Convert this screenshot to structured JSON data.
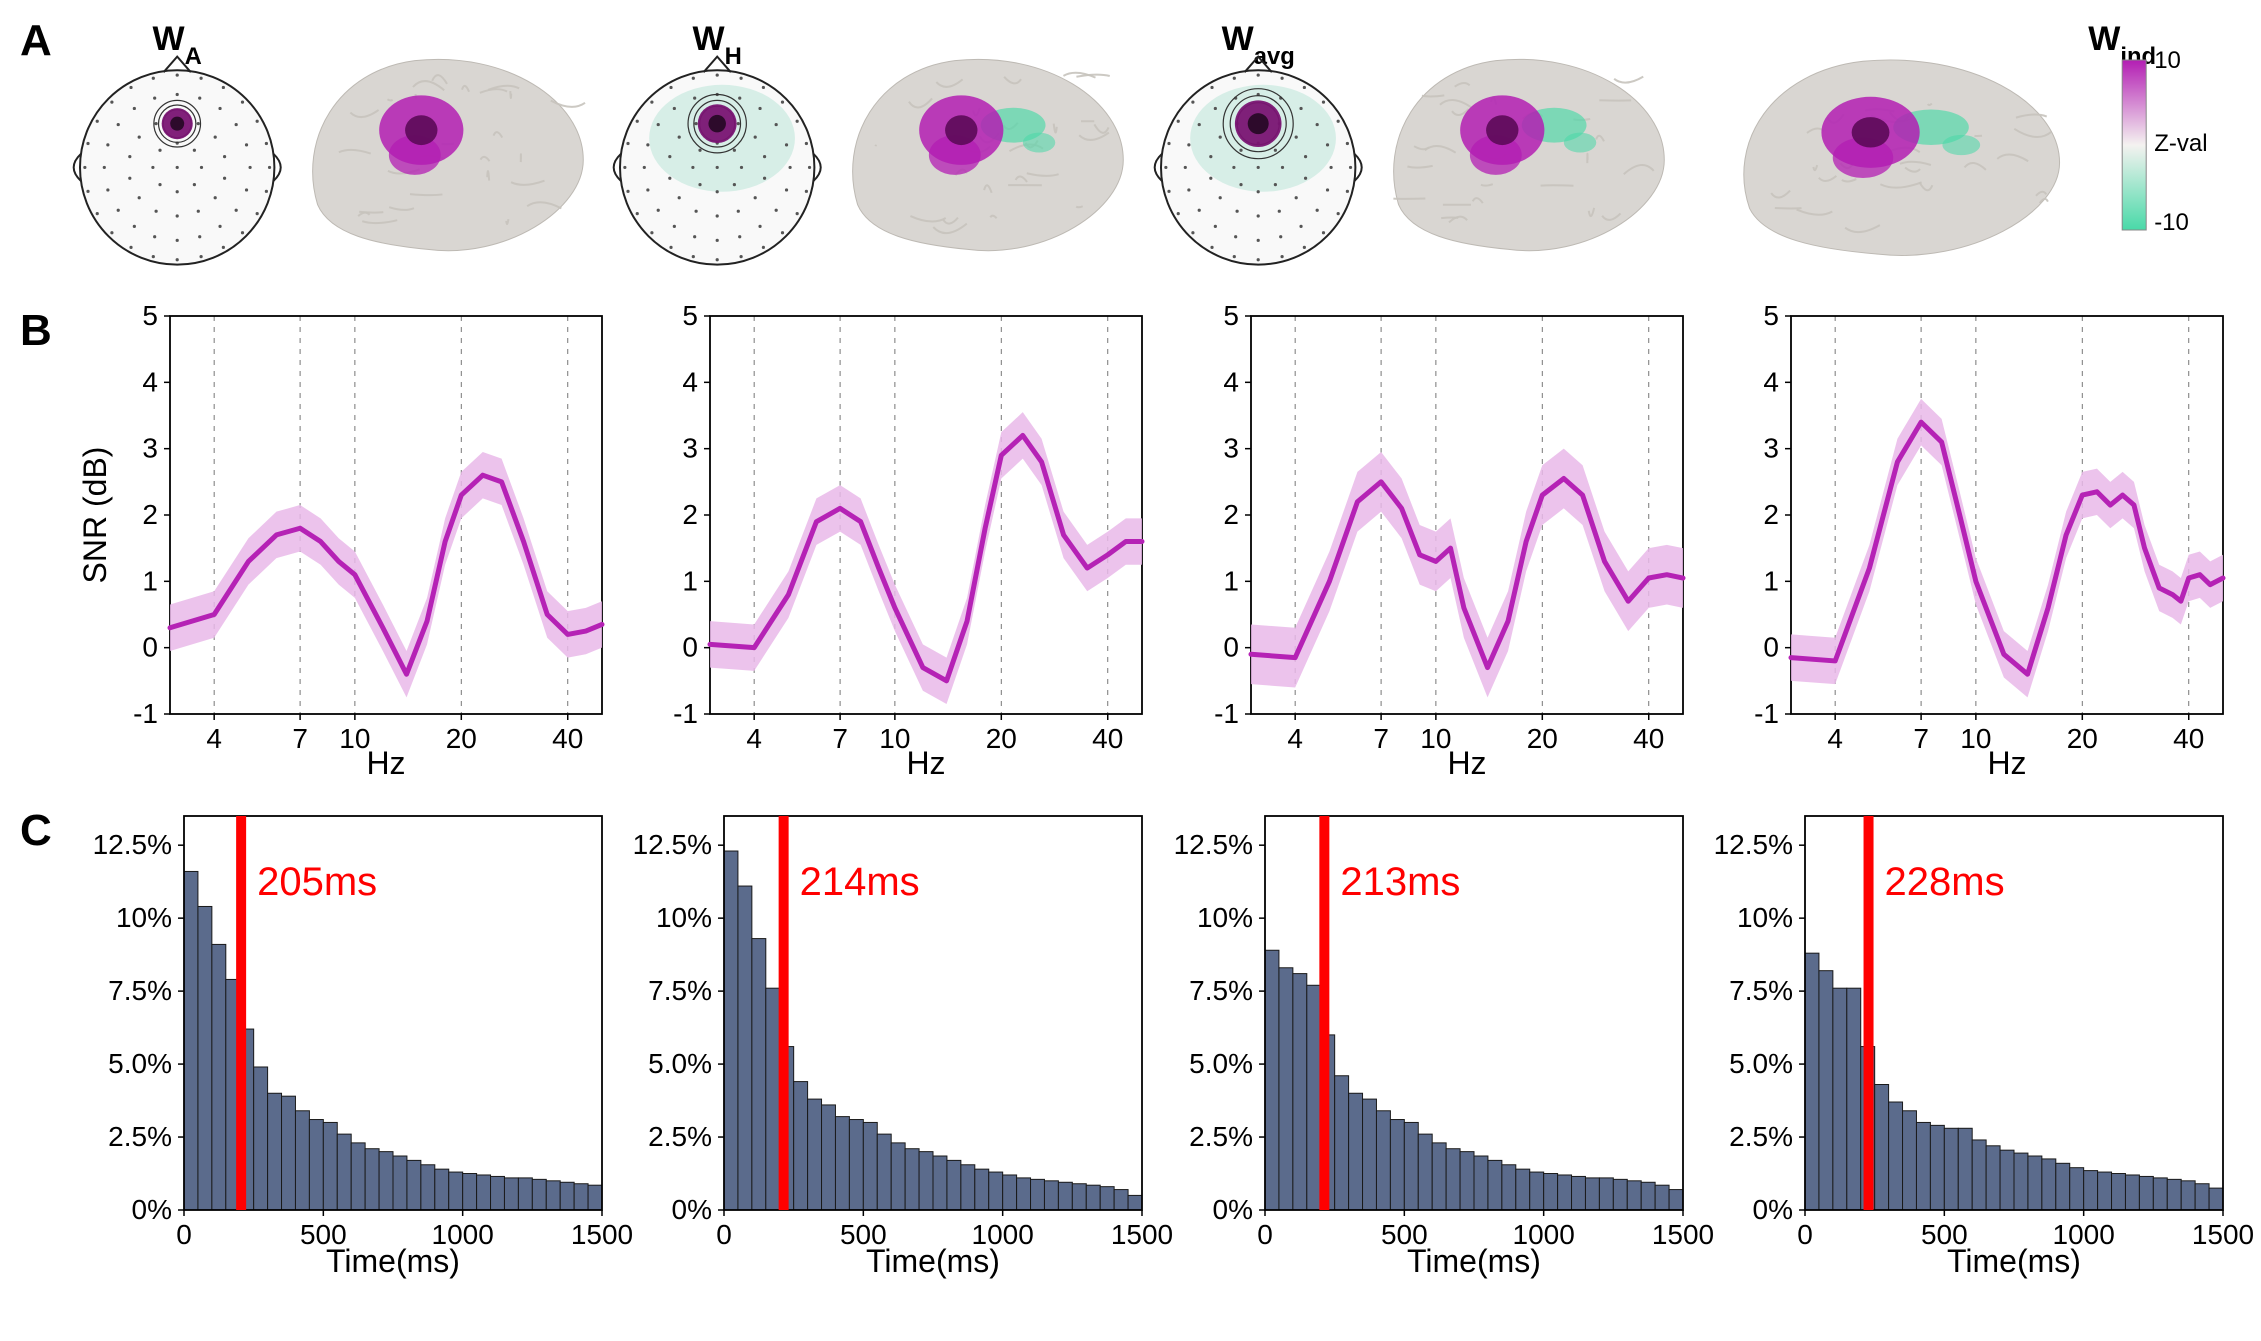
{
  "colors": {
    "line": "#b522b5",
    "band": "#e9b8e9",
    "bar_fill": "#5b6b8c",
    "bar_stroke": "#1a1a1a",
    "red": "#ff0000",
    "axis": "#000000",
    "grid": "#777777",
    "brain_base": "#d9d6d2",
    "brain_hot": "#b31eb3",
    "brain_cold": "#49d9a8",
    "topo_outline": "#222222",
    "topo_fill": "#f9f9f9",
    "topo_focus_main": "#7a1473",
    "topo_focus_halo": "#c9e9df"
  },
  "fontsizes": {
    "row_label": 44,
    "panel_title": 34,
    "axis_label": 32,
    "tick": 28,
    "annotation": 40,
    "cb_tick": 24
  },
  "rowA": {
    "panels": [
      {
        "title_main": "W",
        "title_sub": "A",
        "topo": {
          "focus": "tight",
          "halo": false
        }
      },
      {
        "title_main": "W",
        "title_sub": "H",
        "topo": {
          "focus": "medium",
          "halo": true
        }
      },
      {
        "title_main": "W",
        "title_sub": "avg",
        "topo": {
          "focus": "wide",
          "halo": true
        }
      },
      {
        "title_main": "W",
        "title_sub": "ind",
        "topo": null
      }
    ],
    "colorbar": {
      "max": 10,
      "min": -10,
      "label": "Z-val"
    }
  },
  "rowB": {
    "ylabel": "SNR (dB)",
    "xlabel": "Hz",
    "ylim": [
      -1,
      5
    ],
    "yticks": [
      -1,
      0,
      1,
      2,
      3,
      4,
      5
    ],
    "xticks": [
      4,
      7,
      10,
      20,
      40
    ],
    "xrange": [
      3,
      50
    ],
    "panels": [
      {
        "curve": [
          [
            3,
            0.3
          ],
          [
            4,
            0.5
          ],
          [
            5,
            1.3
          ],
          [
            6,
            1.7
          ],
          [
            7,
            1.8
          ],
          [
            8,
            1.6
          ],
          [
            9,
            1.3
          ],
          [
            10,
            1.1
          ],
          [
            12,
            0.3
          ],
          [
            14,
            -0.4
          ],
          [
            16,
            0.4
          ],
          [
            18,
            1.6
          ],
          [
            20,
            2.3
          ],
          [
            23,
            2.6
          ],
          [
            26,
            2.5
          ],
          [
            30,
            1.6
          ],
          [
            35,
            0.5
          ],
          [
            40,
            0.2
          ],
          [
            45,
            0.25
          ],
          [
            50,
            0.35
          ]
        ],
        "band": 0.35
      },
      {
        "curve": [
          [
            3,
            0.05
          ],
          [
            4,
            0.0
          ],
          [
            5,
            0.8
          ],
          [
            6,
            1.9
          ],
          [
            7,
            2.1
          ],
          [
            8,
            1.9
          ],
          [
            9,
            1.2
          ],
          [
            10,
            0.6
          ],
          [
            12,
            -0.3
          ],
          [
            14,
            -0.5
          ],
          [
            16,
            0.4
          ],
          [
            18,
            1.8
          ],
          [
            20,
            2.9
          ],
          [
            23,
            3.2
          ],
          [
            26,
            2.8
          ],
          [
            30,
            1.7
          ],
          [
            35,
            1.2
          ],
          [
            40,
            1.4
          ],
          [
            45,
            1.6
          ],
          [
            50,
            1.6
          ]
        ],
        "band": 0.35
      },
      {
        "curve": [
          [
            3,
            -0.1
          ],
          [
            4,
            -0.15
          ],
          [
            5,
            1.0
          ],
          [
            6,
            2.2
          ],
          [
            7,
            2.5
          ],
          [
            8,
            2.1
          ],
          [
            9,
            1.4
          ],
          [
            10,
            1.3
          ],
          [
            11,
            1.5
          ],
          [
            12,
            0.6
          ],
          [
            14,
            -0.3
          ],
          [
            16,
            0.4
          ],
          [
            18,
            1.6
          ],
          [
            20,
            2.3
          ],
          [
            23,
            2.55
          ],
          [
            26,
            2.3
          ],
          [
            30,
            1.3
          ],
          [
            35,
            0.7
          ],
          [
            40,
            1.05
          ],
          [
            45,
            1.1
          ],
          [
            50,
            1.05
          ]
        ],
        "band": 0.45
      },
      {
        "curve": [
          [
            3,
            -0.15
          ],
          [
            4,
            -0.2
          ],
          [
            5,
            1.2
          ],
          [
            6,
            2.8
          ],
          [
            7,
            3.4
          ],
          [
            8,
            3.1
          ],
          [
            9,
            2.0
          ],
          [
            10,
            1.0
          ],
          [
            12,
            -0.1
          ],
          [
            14,
            -0.4
          ],
          [
            16,
            0.6
          ],
          [
            18,
            1.7
          ],
          [
            20,
            2.3
          ],
          [
            22,
            2.35
          ],
          [
            24,
            2.15
          ],
          [
            26,
            2.3
          ],
          [
            28,
            2.15
          ],
          [
            30,
            1.5
          ],
          [
            33,
            0.9
          ],
          [
            36,
            0.8
          ],
          [
            38,
            0.7
          ],
          [
            40,
            1.05
          ],
          [
            43,
            1.1
          ],
          [
            46,
            0.95
          ],
          [
            50,
            1.05
          ]
        ],
        "band": 0.35
      }
    ]
  },
  "rowC": {
    "ylabel_suffix": "%",
    "xlabel": "Time(ms)",
    "ylim": [
      0,
      13.5
    ],
    "yticks": [
      0,
      2.5,
      5.0,
      7.5,
      10.0,
      12.5
    ],
    "ytick_labels": [
      "0%",
      "2.5%",
      "5.0%",
      "7.5%",
      "10%",
      "12.5%"
    ],
    "xlim": [
      0,
      1500
    ],
    "xticks": [
      0,
      500,
      1000,
      1500
    ],
    "bin_width": 50,
    "panels": [
      {
        "median": 205,
        "median_label": "205ms",
        "bars": [
          11.6,
          10.4,
          9.1,
          7.9,
          6.2,
          4.9,
          4.0,
          3.9,
          3.4,
          3.1,
          3.0,
          2.6,
          2.3,
          2.1,
          2.0,
          1.85,
          1.7,
          1.55,
          1.4,
          1.3,
          1.25,
          1.2,
          1.15,
          1.1,
          1.1,
          1.05,
          1.0,
          0.95,
          0.9,
          0.85
        ]
      },
      {
        "median": 214,
        "median_label": "214ms",
        "bars": [
          12.3,
          11.1,
          9.3,
          7.6,
          5.6,
          4.4,
          3.8,
          3.6,
          3.2,
          3.1,
          3.0,
          2.6,
          2.3,
          2.1,
          2.0,
          1.85,
          1.7,
          1.55,
          1.4,
          1.3,
          1.2,
          1.1,
          1.05,
          1.0,
          0.95,
          0.9,
          0.85,
          0.8,
          0.7,
          0.5
        ]
      },
      {
        "median": 213,
        "median_label": "213ms",
        "bars": [
          8.9,
          8.3,
          8.1,
          7.7,
          6.0,
          4.6,
          4.0,
          3.8,
          3.4,
          3.1,
          3.0,
          2.6,
          2.3,
          2.1,
          2.0,
          1.85,
          1.7,
          1.55,
          1.4,
          1.3,
          1.25,
          1.2,
          1.15,
          1.1,
          1.1,
          1.05,
          1.0,
          0.95,
          0.85,
          0.7
        ]
      },
      {
        "median": 228,
        "median_label": "228ms",
        "bars": [
          8.8,
          8.2,
          7.6,
          7.6,
          5.6,
          4.3,
          3.7,
          3.4,
          3.0,
          2.9,
          2.8,
          2.8,
          2.4,
          2.2,
          2.05,
          1.95,
          1.85,
          1.75,
          1.6,
          1.45,
          1.35,
          1.3,
          1.25,
          1.2,
          1.15,
          1.1,
          1.05,
          1.0,
          0.9,
          0.75
        ]
      }
    ]
  },
  "row_labels": {
    "A": "A",
    "B": "B",
    "C": "C"
  }
}
